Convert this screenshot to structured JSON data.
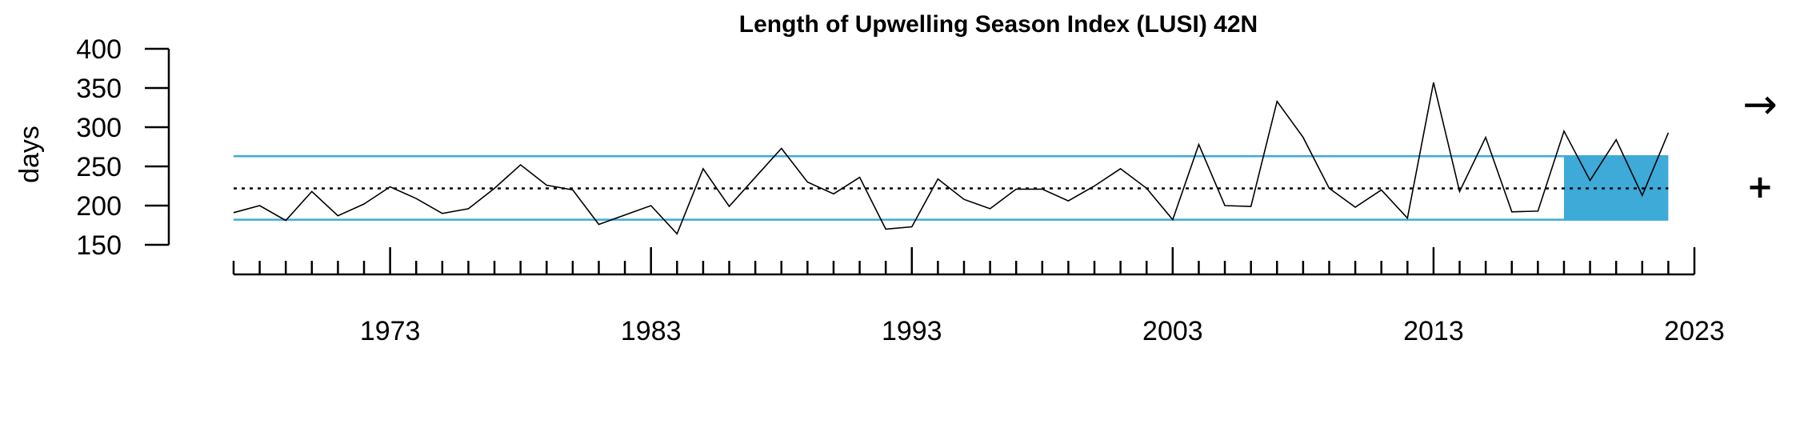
{
  "chart_data": {
    "type": "line",
    "title": "Length of Upwelling Season Index (LUSI) 42N",
    "ylabel": "days",
    "xlabel": "",
    "ylim": [
      150,
      400
    ],
    "yticks": [
      "150",
      "200",
      "250",
      "300",
      "350",
      "400"
    ],
    "xlim": [
      1967,
      2023
    ],
    "xticks": [
      "1973",
      "1983",
      "1993",
      "2003",
      "2013",
      "2023"
    ],
    "mean": 222,
    "sd_upper": 263,
    "sd_lower": 182,
    "highlight_range": [
      2018,
      2022
    ],
    "band_color": "#3eaad8",
    "line_color": "#000000",
    "trend_symbol": "→",
    "mean_symbol": "+",
    "series": [
      {
        "x": [
          1967,
          1968,
          1969,
          1970,
          1971,
          1972,
          1973,
          1974,
          1975,
          1976,
          1977,
          1978,
          1979,
          1980,
          1981,
          1982,
          1983,
          1984,
          1985,
          1986,
          1987,
          1988,
          1989,
          1990,
          1991,
          1992,
          1993,
          1994,
          1995,
          1996,
          1997,
          1998,
          1999,
          2000,
          2001,
          2002,
          2003,
          2004,
          2005,
          2006,
          2007,
          2008,
          2009,
          2010,
          2011,
          2012,
          2013,
          2014,
          2015,
          2016,
          2017,
          2018,
          2019,
          2020,
          2021,
          2022
        ],
        "values": [
          191,
          200,
          181,
          218,
          187,
          202,
          224,
          209,
          190,
          196,
          222,
          252,
          226,
          220,
          176,
          188,
          200,
          164,
          247,
          199,
          236,
          273,
          230,
          215,
          236,
          170,
          173,
          234,
          208,
          196,
          221,
          221,
          206,
          225,
          247,
          222,
          182,
          278,
          200,
          199,
          333,
          287,
          222,
          198,
          220,
          184,
          357,
          218,
          287,
          192,
          193,
          295,
          232,
          284,
          213,
          293
        ]
      }
    ]
  }
}
